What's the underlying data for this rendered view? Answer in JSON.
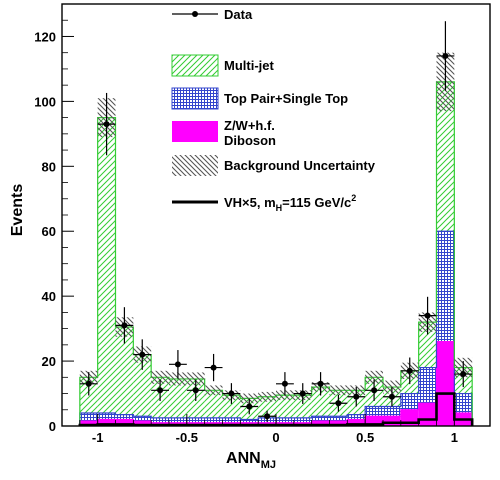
{
  "chart_data": {
    "type": "histogram",
    "xlabel": "ANN",
    "xlabel_sub": "MJ",
    "ylabel": "Events",
    "xlim": [
      -1.2,
      1.2
    ],
    "ylim": [
      0,
      130
    ],
    "x_ticks": [
      -1,
      -0.5,
      0,
      0.5,
      1
    ],
    "x_tick_labels": [
      "-1",
      "-0.5",
      "0",
      "0.5",
      "1"
    ],
    "y_ticks": [
      0,
      20,
      40,
      60,
      80,
      100,
      120
    ],
    "y_tick_labels": [
      "0",
      "20",
      "40",
      "60",
      "80",
      "100",
      "120"
    ],
    "bin_edges": [
      -1.1,
      -1.0,
      -0.9,
      -0.8,
      -0.7,
      -0.6,
      -0.5,
      -0.4,
      -0.3,
      -0.2,
      -0.1,
      0.0,
      0.1,
      0.2,
      0.3,
      0.4,
      0.5,
      0.6,
      0.7,
      0.8,
      0.9,
      1.0,
      1.1
    ],
    "stack": [
      {
        "name": "Z/W+h.f. Diboson",
        "color": "#ff00ff",
        "values": [
          1.5,
          2,
          2,
          1.5,
          1,
          1,
          1,
          1,
          1,
          1,
          1,
          1,
          1,
          1.5,
          1.5,
          2,
          3,
          3,
          5,
          7,
          26,
          4
        ]
      },
      {
        "name": "Top Pair+Single Top",
        "color": "#3344cc",
        "values": [
          2.5,
          2,
          1.5,
          1.5,
          1.5,
          1.5,
          1.5,
          1.5,
          1.5,
          1,
          1.5,
          1.5,
          1.5,
          1.5,
          1.5,
          1.5,
          3,
          3,
          5,
          11,
          34,
          6
        ]
      },
      {
        "name": "Multi-jet",
        "color": "#33cc33",
        "values": [
          11,
          91,
          27,
          19,
          12.5,
          12,
          12,
          8.5,
          7,
          6.5,
          6.5,
          7,
          7,
          9,
          8,
          7.5,
          9,
          6,
          7,
          14,
          46,
          8
        ]
      }
    ],
    "stack_totals": [
      15,
      95,
      30.5,
      22,
      15,
      14.5,
      14.5,
      11,
      9.5,
      8.5,
      9,
      9.5,
      9.5,
      12,
      11,
      11,
      15,
      12,
      17,
      32,
      106,
      18
    ],
    "uncertainty": [
      2,
      6,
      3,
      2.5,
      2,
      2,
      2,
      1.5,
      1.5,
      1.5,
      1.5,
      1.5,
      1.5,
      1.5,
      1.5,
      1.5,
      2,
      2,
      2.5,
      3,
      9,
      3
    ],
    "signal": {
      "name": "VH×5, m_H=115 GeV/c²",
      "values": [
        0.3,
        0.5,
        0.5,
        0.3,
        0.3,
        0.3,
        0.3,
        0.3,
        0.3,
        0.3,
        0.3,
        0.3,
        0.3,
        0.3,
        0.3,
        0.5,
        0.5,
        1,
        1,
        2,
        10,
        2
      ]
    },
    "data": {
      "name": "Data",
      "x": [
        -1.05,
        -0.95,
        -0.85,
        -0.75,
        -0.65,
        -0.55,
        -0.45,
        -0.35,
        -0.25,
        -0.15,
        -0.05,
        0.05,
        0.15,
        0.25,
        0.35,
        0.45,
        0.55,
        0.65,
        0.75,
        0.85,
        0.95,
        1.05
      ],
      "y": [
        13,
        93,
        31,
        22,
        11,
        19,
        11,
        18,
        10,
        6,
        3,
        13,
        10,
        13,
        7,
        9,
        11,
        9,
        17,
        34,
        114,
        16
      ],
      "yerr": [
        3.6,
        9.6,
        5.6,
        4.7,
        3.3,
        4.4,
        3.3,
        4.2,
        3.2,
        2.4,
        1.7,
        3.6,
        3.2,
        3.6,
        2.6,
        3,
        3.3,
        3,
        4.1,
        5.8,
        10.7,
        4
      ]
    }
  },
  "legend": {
    "data": "Data",
    "multijet": "Multi-jet",
    "top": "Top Pair+Single Top",
    "zw_line1": "Z/W+h.f.",
    "zw_line2": "Diboson",
    "uncert": "Background Uncertainty",
    "signal_pre": "VH×5, m",
    "signal_sub": "H",
    "signal_post": "=115 GeV/c",
    "signal_sup": "2"
  }
}
